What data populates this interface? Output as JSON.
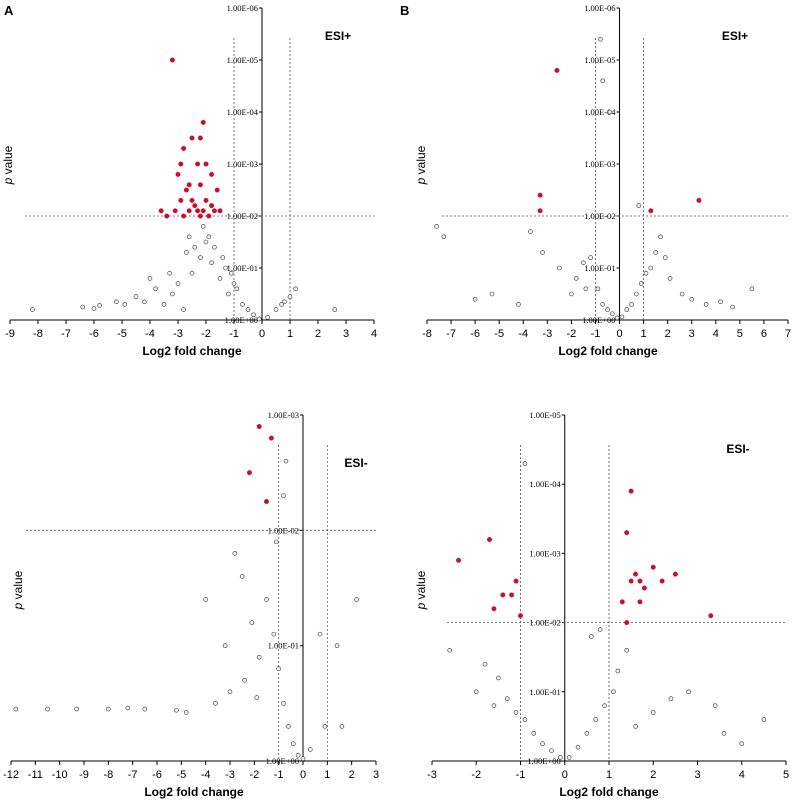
{
  "panel_labels": [
    "A",
    "B"
  ],
  "colors": {
    "significant": "#c8102e",
    "nonsignificant_fill": "#f2f2f2",
    "nonsignificant_stroke": "#333333",
    "axis": "#000000"
  },
  "chart_data": [
    {
      "type": "scatter",
      "title": "ESI+",
      "xlabel": "Log2 fold change",
      "ylabel": "p value",
      "xlim": [
        -9,
        4
      ],
      "ylim_log10": [
        0,
        6
      ],
      "x_ticks": [
        "-9",
        "-8",
        "-7",
        "-6",
        "-5",
        "-4",
        "-3",
        "-2",
        "-1",
        "0",
        "1",
        "2",
        "3",
        "4"
      ],
      "y_ticks": [
        "1.00E+00",
        "1.00E-01",
        "1.00E-02",
        "1.00E-03",
        "1.00E-04",
        "1.00E-05",
        "1.00E-06"
      ],
      "thresholds": {
        "fold_change": [
          -1,
          1
        ],
        "p_value": "1.00E-02"
      },
      "significant_points": [
        [
          -3.2,
          5.0
        ],
        [
          -2.8,
          3.3
        ],
        [
          -2.9,
          3.0
        ],
        [
          -2.5,
          3.5
        ],
        [
          -2.3,
          3.0
        ],
        [
          -2.2,
          3.5
        ],
        [
          -2.1,
          3.8
        ],
        [
          -2.0,
          3.0
        ],
        [
          -3.0,
          2.8
        ],
        [
          -2.6,
          2.6
        ],
        [
          -2.4,
          2.2
        ],
        [
          -2.7,
          2.5
        ],
        [
          -3.1,
          2.1
        ],
        [
          -2.9,
          2.3
        ],
        [
          -2.2,
          2.6
        ],
        [
          -2.0,
          2.3
        ],
        [
          -1.8,
          2.2
        ],
        [
          -1.6,
          2.5
        ],
        [
          -1.5,
          2.1
        ],
        [
          -1.8,
          2.8
        ],
        [
          -2.3,
          2.1
        ],
        [
          -2.5,
          2.3
        ],
        [
          -3.4,
          2.0
        ],
        [
          -3.6,
          2.1
        ],
        [
          -2.1,
          2.1
        ],
        [
          -1.9,
          2.0
        ],
        [
          -1.7,
          2.1
        ],
        [
          -2.8,
          2.0
        ],
        [
          -2.2,
          2.0
        ],
        [
          -2.6,
          2.1
        ]
      ],
      "nonsignificant_points": [
        [
          -8.2,
          0.2
        ],
        [
          -6.4,
          0.25
        ],
        [
          -6.0,
          0.22
        ],
        [
          -5.8,
          0.28
        ],
        [
          -5.2,
          0.35
        ],
        [
          -4.9,
          0.3
        ],
        [
          -4.5,
          0.45
        ],
        [
          -4.2,
          0.35
        ],
        [
          -3.8,
          0.6
        ],
        [
          -3.5,
          0.3
        ],
        [
          -3.2,
          0.5
        ],
        [
          -3.0,
          0.7
        ],
        [
          -2.8,
          0.2
        ],
        [
          -2.5,
          0.9
        ],
        [
          -2.2,
          1.2
        ],
        [
          -2.0,
          1.5
        ],
        [
          -1.8,
          1.1
        ],
        [
          -1.5,
          0.8
        ],
        [
          -1.2,
          0.5
        ],
        [
          -1.0,
          0.7
        ],
        [
          -0.7,
          0.3
        ],
        [
          -0.5,
          0.2
        ],
        [
          -0.3,
          0.1
        ],
        [
          -0.1,
          0.02
        ],
        [
          0.2,
          0.05
        ],
        [
          0.5,
          0.2
        ],
        [
          0.7,
          0.3
        ],
        [
          0.8,
          0.35
        ],
        [
          1.0,
          0.45
        ],
        [
          1.2,
          0.6
        ],
        [
          2.6,
          0.2
        ],
        [
          -2.6,
          1.6
        ],
        [
          -2.1,
          1.8
        ],
        [
          -1.9,
          1.6
        ],
        [
          -1.7,
          1.4
        ],
        [
          -1.4,
          1.2
        ],
        [
          -1.3,
          1.0
        ],
        [
          -1.1,
          0.9
        ],
        [
          -0.9,
          0.6
        ],
        [
          -2.4,
          1.4
        ],
        [
          -2.7,
          1.3
        ],
        [
          -3.3,
          0.9
        ],
        [
          -4.0,
          0.8
        ]
      ]
    },
    {
      "type": "scatter",
      "title": "ESI+",
      "xlabel": "Log2 fold change",
      "ylabel": "p value",
      "xlim": [
        -8,
        7
      ],
      "ylim_log10": [
        0,
        6
      ],
      "x_ticks": [
        "-8",
        "-7",
        "-6",
        "-5",
        "-4",
        "-3",
        "-2",
        "-1",
        "0",
        "1",
        "2",
        "3",
        "4",
        "5",
        "6",
        "7"
      ],
      "y_ticks": [
        "1.00E+00",
        "1.00E-01",
        "1.00E-02",
        "1.00E-03",
        "1.00E-04",
        "1.00E-05",
        "1.00E-06"
      ],
      "thresholds": {
        "fold_change": [
          -1,
          1
        ],
        "p_value": "1.00E-02"
      },
      "significant_points": [
        [
          -2.6,
          4.8
        ],
        [
          -3.3,
          2.4
        ],
        [
          -3.3,
          2.1
        ],
        [
          1.3,
          2.1
        ],
        [
          3.3,
          2.3
        ]
      ],
      "nonsignificant_points": [
        [
          -0.8,
          5.4
        ],
        [
          -0.7,
          4.6
        ],
        [
          -0.4,
          4.0
        ],
        [
          -7.6,
          1.8
        ],
        [
          -7.3,
          1.6
        ],
        [
          -3.7,
          1.7
        ],
        [
          -3.2,
          1.3
        ],
        [
          -2.5,
          1.0
        ],
        [
          -1.8,
          0.8
        ],
        [
          -1.5,
          1.1
        ],
        [
          -1.2,
          1.2
        ],
        [
          -0.9,
          0.6
        ],
        [
          -0.7,
          0.3
        ],
        [
          -0.5,
          0.2
        ],
        [
          -0.3,
          0.12
        ],
        [
          -0.1,
          0.04
        ],
        [
          0.1,
          0.06
        ],
        [
          0.3,
          0.2
        ],
        [
          0.5,
          0.3
        ],
        [
          0.7,
          0.5
        ],
        [
          0.9,
          0.7
        ],
        [
          1.1,
          0.9
        ],
        [
          1.3,
          1.0
        ],
        [
          1.5,
          1.3
        ],
        [
          1.7,
          1.6
        ],
        [
          1.9,
          1.2
        ],
        [
          2.1,
          0.8
        ],
        [
          2.6,
          0.5
        ],
        [
          3.0,
          0.4
        ],
        [
          3.6,
          0.3
        ],
        [
          4.2,
          0.35
        ],
        [
          4.7,
          0.25
        ],
        [
          5.5,
          0.6
        ],
        [
          -6.0,
          0.4
        ],
        [
          -5.3,
          0.5
        ],
        [
          -4.2,
          0.3
        ],
        [
          0.8,
          2.2
        ],
        [
          -2.0,
          0.5
        ],
        [
          -1.4,
          0.6
        ]
      ]
    },
    {
      "type": "scatter",
      "title": "ESI-",
      "xlabel": "Log2 fold change",
      "ylabel": "p value",
      "xlim": [
        -12,
        3
      ],
      "ylim_log10": [
        0,
        3
      ],
      "x_ticks": [
        "-12",
        "-11",
        "-10",
        "-9",
        "-8",
        "-7",
        "-6",
        "-5",
        "-4",
        "-3",
        "-2",
        "-1",
        "0",
        "1",
        "2",
        "3"
      ],
      "y_ticks": [
        "1.00E+00",
        "1.00E-01",
        "1.00E-02",
        "1.00E-03"
      ],
      "thresholds": {
        "fold_change": [
          -1,
          1
        ],
        "p_value": "1.00E-02"
      },
      "significant_points": [
        [
          -1.8,
          2.9
        ],
        [
          -1.3,
          2.8
        ],
        [
          -2.2,
          2.5
        ],
        [
          -1.5,
          2.25
        ]
      ],
      "nonsignificant_points": [
        [
          -11.8,
          0.45
        ],
        [
          -10.5,
          0.45
        ],
        [
          -9.3,
          0.45
        ],
        [
          -8.0,
          0.45
        ],
        [
          -7.2,
          0.46
        ],
        [
          -6.5,
          0.45
        ],
        [
          -5.2,
          0.44
        ],
        [
          -4.8,
          0.42
        ],
        [
          -4.0,
          1.4
        ],
        [
          -3.6,
          0.5
        ],
        [
          -3.2,
          1.0
        ],
        [
          -2.8,
          1.8
        ],
        [
          -2.5,
          1.6
        ],
        [
          -2.1,
          1.2
        ],
        [
          -1.8,
          0.9
        ],
        [
          -1.5,
          1.4
        ],
        [
          -1.2,
          1.1
        ],
        [
          -1.0,
          0.8
        ],
        [
          -0.8,
          0.5
        ],
        [
          -0.6,
          0.3
        ],
        [
          -0.4,
          0.15
        ],
        [
          -0.2,
          0.05
        ],
        [
          0.0,
          0.02
        ],
        [
          0.3,
          0.1
        ],
        [
          0.7,
          1.1
        ],
        [
          0.9,
          0.3
        ],
        [
          1.4,
          1.0
        ],
        [
          1.6,
          0.3
        ],
        [
          2.2,
          1.4
        ],
        [
          -0.7,
          2.6
        ],
        [
          -0.8,
          2.3
        ],
        [
          -1.1,
          1.9
        ],
        [
          -2.4,
          0.7
        ],
        [
          -3.0,
          0.6
        ],
        [
          -1.9,
          0.55
        ]
      ]
    },
    {
      "type": "scatter",
      "title": "ESI-",
      "xlabel": "Log2 fold change",
      "ylabel": "p value",
      "xlim": [
        -3,
        5
      ],
      "ylim_log10": [
        0,
        5
      ],
      "x_ticks": [
        "-3",
        "-2",
        "-1",
        "0",
        "1",
        "2",
        "3",
        "4",
        "5"
      ],
      "y_ticks": [
        "1.00E+00",
        "1.00E-01",
        "1.00E-02",
        "1.00E-03",
        "1.00E-04",
        "1.00E-05"
      ],
      "thresholds": {
        "fold_change": [
          -1,
          1
        ],
        "p_value": "1.00E-02"
      },
      "significant_points": [
        [
          -2.4,
          2.9
        ],
        [
          -1.7,
          3.2
        ],
        [
          -1.6,
          2.2
        ],
        [
          -1.4,
          2.4
        ],
        [
          -1.2,
          2.4
        ],
        [
          -1.1,
          2.6
        ],
        [
          -1.0,
          2.1
        ],
        [
          1.3,
          2.3
        ],
        [
          1.4,
          3.3
        ],
        [
          1.5,
          3.9
        ],
        [
          1.6,
          2.7
        ],
        [
          1.7,
          2.6
        ],
        [
          1.8,
          2.5
        ],
        [
          2.0,
          2.8
        ],
        [
          2.2,
          2.6
        ],
        [
          2.5,
          2.7
        ],
        [
          3.3,
          2.1
        ],
        [
          1.4,
          2.0
        ],
        [
          1.5,
          2.6
        ],
        [
          1.7,
          2.3
        ]
      ],
      "nonsignificant_points": [
        [
          -0.9,
          4.3
        ],
        [
          -2.6,
          1.6
        ],
        [
          -1.8,
          1.4
        ],
        [
          -1.5,
          1.2
        ],
        [
          -1.3,
          0.9
        ],
        [
          -1.1,
          0.7
        ],
        [
          -0.9,
          0.6
        ],
        [
          -0.7,
          0.4
        ],
        [
          -0.5,
          0.25
        ],
        [
          -0.3,
          0.15
        ],
        [
          -0.1,
          0.05
        ],
        [
          0.1,
          0.05
        ],
        [
          0.3,
          0.2
        ],
        [
          0.5,
          0.4
        ],
        [
          0.7,
          0.6
        ],
        [
          0.9,
          0.8
        ],
        [
          1.1,
          1.0
        ],
        [
          1.2,
          1.3
        ],
        [
          1.4,
          1.6
        ],
        [
          1.6,
          0.5
        ],
        [
          2.0,
          0.7
        ],
        [
          2.4,
          0.9
        ],
        [
          2.8,
          1.0
        ],
        [
          3.4,
          0.8
        ],
        [
          3.6,
          0.4
        ],
        [
          4.0,
          0.25
        ],
        [
          4.5,
          0.6
        ],
        [
          0.6,
          1.8
        ],
        [
          0.8,
          1.9
        ],
        [
          -2.0,
          1.0
        ],
        [
          -1.6,
          0.8
        ]
      ]
    }
  ]
}
